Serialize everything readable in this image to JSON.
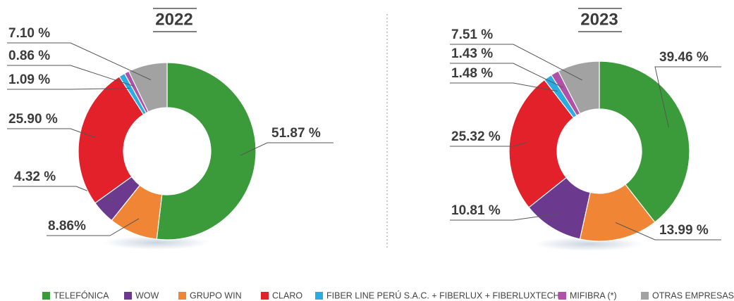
{
  "chart_data": [
    {
      "type": "pie",
      "title": "2022",
      "values": [
        51.87,
        4.32,
        8.86,
        25.9,
        1.09,
        0.86,
        7.1
      ],
      "value_labels": [
        "51.87 %",
        "4.32 %",
        "8.86%",
        "25.90 %",
        "1.09 %",
        "0.86 %",
        "7.10 %"
      ]
    },
    {
      "type": "pie",
      "title": "2023",
      "values": [
        39.46,
        10.81,
        13.99,
        25.32,
        1.48,
        1.43,
        7.51
      ],
      "value_labels": [
        "39.46 %",
        "10.81 %",
        "13.99 %",
        "25.32 %",
        "1.48 %",
        "1.43 %",
        "7.51 %"
      ]
    }
  ],
  "legend": {
    "labels": [
      "TELEFÓNICA",
      "WOW",
      "GRUPO WIN",
      "CLARO",
      "FIBER LINE PERÚ S.A.C. + FIBERLUX + FIBERLUXTECH",
      "MIFIBRA (*)",
      "OTRAS EMPRESAS"
    ],
    "colors": [
      "#3b9b3b",
      "#6b3a8f",
      "#ef8535",
      "#e3212b",
      "#2aace3",
      "#b050a9",
      "#a2a2a2"
    ]
  }
}
